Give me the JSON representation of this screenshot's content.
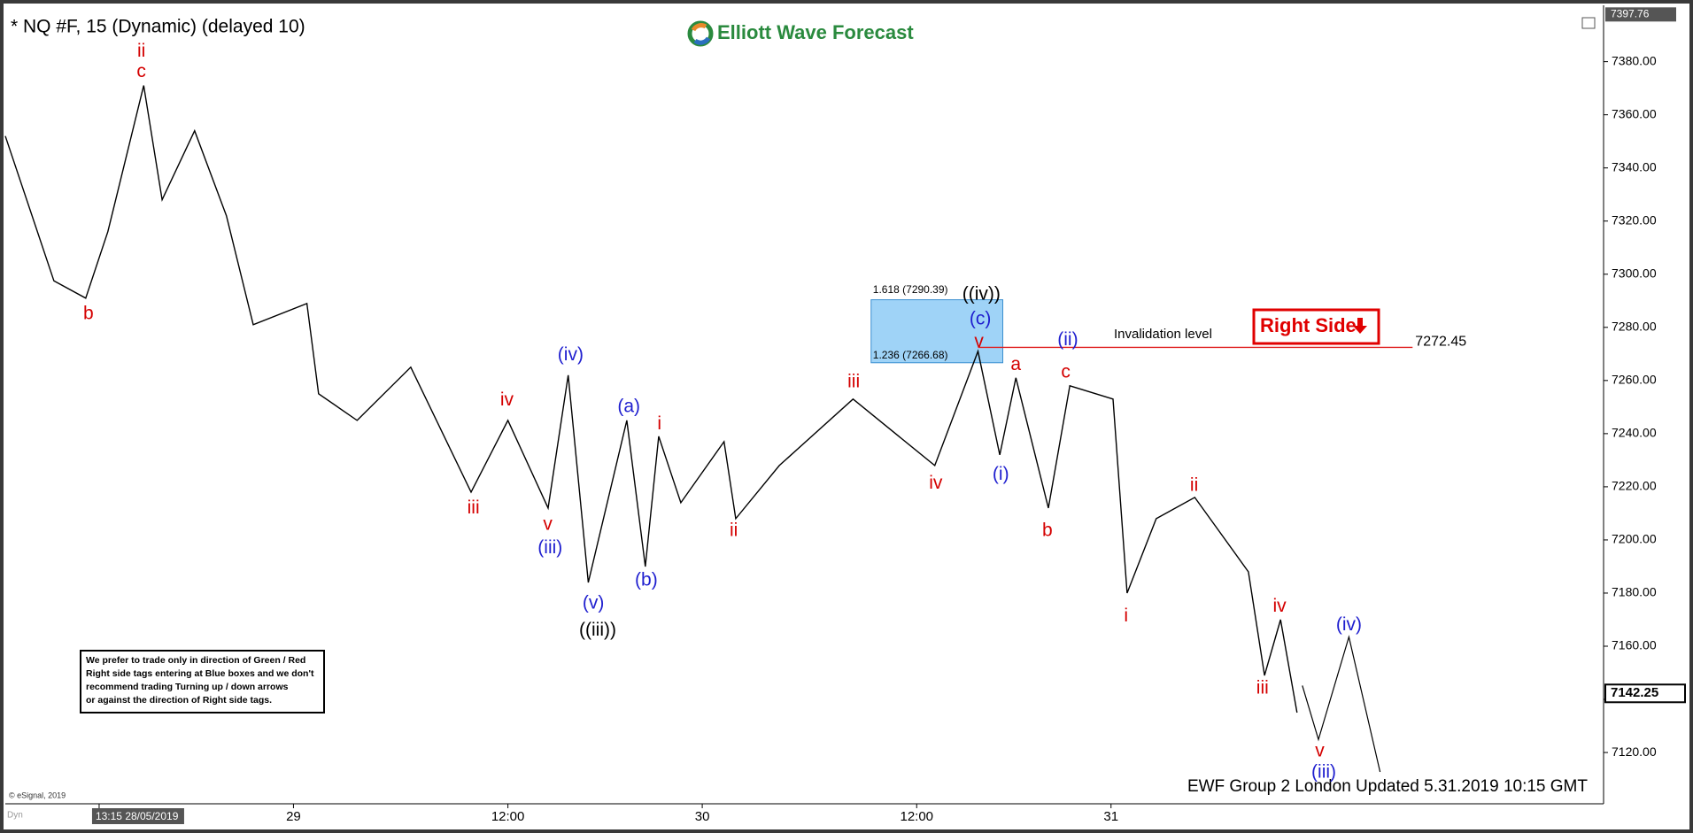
{
  "chart_data": {
    "type": "line",
    "title": "* NQ #F, 15 (Dynamic) (delayed 10)",
    "logo": "Elliott Wave Forecast",
    "footer": "EWF Group 2 London Updated 5.31.2019 10:15 GMT",
    "copyright": "© eSignal, 2019",
    "mode": "Dyn",
    "disclaimer": [
      "We prefer to trade only in direction of Green / Red",
      "Right side tags entering at Blue boxes and we don't",
      "recommend trading Turning up / down arrows",
      "or against the direction of Right side tags."
    ],
    "right_side_tag": "Right Side",
    "color": "#000000",
    "x": [
      0,
      14.5,
      24,
      30.6,
      41.3,
      46.8,
      56.5,
      66,
      74,
      90,
      93.5,
      105,
      121,
      139,
      150,
      162,
      168,
      174,
      185.5,
      191,
      195,
      201.6,
      214.5,
      218,
      231,
      253,
      277.4,
      290.3,
      296.8,
      301.6,
      311.3,
      317.7,
      330.6,
      334.8,
      343.5,
      355,
      371,
      375.8,
      380.6,
      385.5
    ],
    "values": [
      7352,
      7297.5,
      7291,
      7316,
      7371,
      7328,
      7354,
      7322,
      7281,
      7289,
      7255,
      7245,
      7265,
      7218,
      7245,
      7212,
      7262,
      7184,
      7245,
      7190,
      7239,
      7214,
      7237,
      7208,
      7228,
      7253,
      7228,
      7271,
      7232,
      7261,
      7212,
      7258,
      7253,
      7180,
      7208,
      7216,
      7188,
      7149,
      7170,
      7135
    ],
    "projection": {
      "x": [
        387.1,
        391.9,
        401,
        410.3
      ],
      "values": [
        7145.2,
        7124.9,
        7163.5,
        7112.7
      ]
    },
    "xlim": [
      0,
      477
    ],
    "xticks": [
      {
        "value": 28,
        "label": "13:15 28/05/2019"
      },
      {
        "value": 86,
        "label": "29"
      },
      {
        "value": 150,
        "label": "12:00"
      },
      {
        "value": 208,
        "label": "30"
      },
      {
        "value": 272,
        "label": "12:00"
      },
      {
        "value": 330,
        "label": "31"
      }
    ],
    "ylim": [
      7100.7,
      7399.2
    ],
    "yticks": [
      {
        "value": 7120,
        "label": "7120.00"
      },
      {
        "value": 7140,
        "label": "7140.00"
      },
      {
        "value": 7160,
        "label": "7160.00"
      },
      {
        "value": 7180,
        "label": "7180.00"
      },
      {
        "value": 7200,
        "label": "7200.00"
      },
      {
        "value": 7220,
        "label": "7220.00"
      },
      {
        "value": 7240,
        "label": "7240.00"
      },
      {
        "value": 7260,
        "label": "7260.00"
      },
      {
        "value": 7280,
        "label": "7280.00"
      },
      {
        "value": 7300,
        "label": "7300.00"
      },
      {
        "value": 7320,
        "label": "7320.00"
      },
      {
        "value": 7340,
        "label": "7340.00"
      },
      {
        "value": 7360,
        "label": "7360.00"
      },
      {
        "value": 7380,
        "label": "7380.00"
      }
    ],
    "top_price": 7397.76,
    "last_price": 7142.25,
    "blue_box": {
      "x": [
        258.4,
        297.7
      ],
      "top": 7290.39,
      "bottom": 7266.68,
      "top_label": "1.618 (7290.39)",
      "bottom_label": "1.236 (7266.68)",
      "color": "#9fd3f7"
    },
    "invalidation": {
      "value": 7272.45,
      "x": [
        290.3,
        420
      ],
      "label": "Invalidation level",
      "color": "#e02020"
    },
    "annotations": [
      {
        "text": "ii",
        "x": 40.6,
        "y": 7383.7,
        "color": "#d40000"
      },
      {
        "text": "c",
        "x": 40.6,
        "y": 7376,
        "color": "#d40000"
      },
      {
        "text": "b",
        "x": 24.8,
        "y": 7285,
        "color": "#d40000"
      },
      {
        "text": "(iv)",
        "x": 168.7,
        "y": 7269.5,
        "color": "#1f1fcf"
      },
      {
        "text": "iv",
        "x": 149.7,
        "y": 7252.4,
        "color": "#d40000"
      },
      {
        "text": "iii",
        "x": 139.7,
        "y": 7211.8,
        "color": "#d40000"
      },
      {
        "text": "v",
        "x": 161.9,
        "y": 7205.7,
        "color": "#d40000"
      },
      {
        "text": "(iii)",
        "x": 162.6,
        "y": 7196.8,
        "color": "#1f1fcf"
      },
      {
        "text": "(v)",
        "x": 175.5,
        "y": 7176,
        "color": "#1f1fcf"
      },
      {
        "text": "((iii))",
        "x": 176.8,
        "y": 7165.9,
        "color": "#000000"
      },
      {
        "text": "(a)",
        "x": 186.1,
        "y": 7250,
        "color": "#1f1fcf"
      },
      {
        "text": "i",
        "x": 195.2,
        "y": 7243.5,
        "color": "#d40000"
      },
      {
        "text": "(b)",
        "x": 191.3,
        "y": 7184.6,
        "color": "#1f1fcf"
      },
      {
        "text": "ii",
        "x": 217.4,
        "y": 7203.3,
        "color": "#d40000"
      },
      {
        "text": "iii",
        "x": 253.2,
        "y": 7259.3,
        "color": "#d40000"
      },
      {
        "text": "iv",
        "x": 277.7,
        "y": 7221.2,
        "color": "#d40000"
      },
      {
        "text": "((iv))",
        "x": 291.3,
        "y": 7292.2,
        "color": "#000000"
      },
      {
        "text": "(c)",
        "x": 291,
        "y": 7282.9,
        "color": "#1f1fcf"
      },
      {
        "text": "v",
        "x": 290.6,
        "y": 7274.4,
        "color": "#d40000"
      },
      {
        "text": "(ii)",
        "x": 317.1,
        "y": 7275.2,
        "color": "#1f1fcf"
      },
      {
        "text": "a",
        "x": 301.6,
        "y": 7265.8,
        "color": "#d40000"
      },
      {
        "text": "(i)",
        "x": 297.1,
        "y": 7224.4,
        "color": "#1f1fcf"
      },
      {
        "text": "c",
        "x": 316.5,
        "y": 7263,
        "color": "#d40000"
      },
      {
        "text": "b",
        "x": 311,
        "y": 7203.3,
        "color": "#d40000"
      },
      {
        "text": "i",
        "x": 334.5,
        "y": 7171.2,
        "color": "#d40000"
      },
      {
        "text": "ii",
        "x": 354.8,
        "y": 7220.3,
        "color": "#d40000"
      },
      {
        "text": "iv",
        "x": 380.3,
        "y": 7174.8,
        "color": "#d40000"
      },
      {
        "text": "iii",
        "x": 375.2,
        "y": 7144,
        "color": "#d40000"
      },
      {
        "text": "(iv)",
        "x": 401,
        "y": 7167.9,
        "color": "#1f1fcf"
      },
      {
        "text": "v",
        "x": 392.3,
        "y": 7120.4,
        "color": "#d40000"
      },
      {
        "text": "(iii)",
        "x": 393.5,
        "y": 7112.3,
        "color": "#1f1fcf"
      }
    ]
  }
}
